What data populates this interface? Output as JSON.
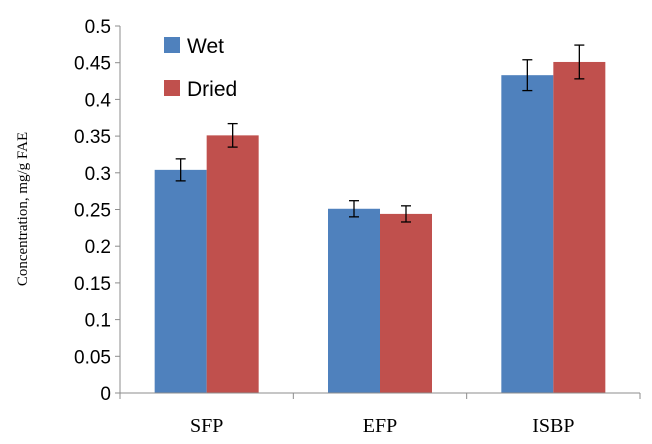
{
  "chart_data": {
    "type": "bar",
    "title": "",
    "xlabel": "",
    "ylabel": "Concentration, mg/g FAE",
    "categories": [
      "SFP",
      "EFP",
      "ISBP"
    ],
    "series": [
      {
        "name": "Wet",
        "color": "#4f81bd",
        "values": [
          0.304,
          0.251,
          0.433
        ],
        "errors": [
          0.015,
          0.011,
          0.021
        ]
      },
      {
        "name": "Dried",
        "color": "#c0504d",
        "values": [
          0.351,
          0.244,
          0.451
        ],
        "errors": [
          0.016,
          0.011,
          0.023
        ]
      }
    ],
    "ylim": [
      0,
      0.5
    ],
    "yticks": [
      "0",
      "0.05",
      "0.1",
      "0.15",
      "0.2",
      "0.25",
      "0.3",
      "0.35",
      "0.4",
      "0.45",
      "0.5"
    ],
    "grid": false,
    "legend_position": "top-left",
    "error_bars": true
  }
}
